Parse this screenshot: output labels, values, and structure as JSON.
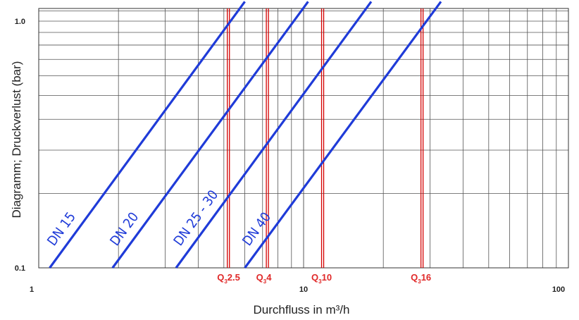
{
  "chart_data": {
    "type": "line",
    "xscale": "log",
    "yscale": "log",
    "xlim": [
      1,
      100
    ],
    "ylim": [
      0.1,
      1.0
    ],
    "xticks": [
      {
        "value": 1,
        "label": "1"
      },
      {
        "value": 10,
        "label": "10"
      },
      {
        "value": 100,
        "label": "100"
      }
    ],
    "yticks": [
      {
        "value": 0.1,
        "label": "0.1"
      },
      {
        "value": 1.0,
        "label": "1.0"
      }
    ],
    "xlabel": "Durchfluss in m³/h",
    "ylabel": "Diagramm; Druckverlust (bar)",
    "grid": true,
    "series": [
      {
        "name": "DN 15",
        "x": [
          1.1,
          6.0
        ],
        "y": [
          0.1,
          1.2
        ]
      },
      {
        "name": "DN 20",
        "x": [
          1.9,
          10.4
        ],
        "y": [
          0.1,
          1.2
        ]
      },
      {
        "name": "DN 25 - 30",
        "x": [
          3.3,
          18.0
        ],
        "y": [
          0.1,
          1.2
        ]
      },
      {
        "name": "DN 40",
        "x": [
          6.0,
          33.0
        ],
        "y": [
          0.1,
          1.2
        ]
      }
    ],
    "markers": [
      {
        "label": "Q3 2.5",
        "prefix": "Q",
        "sub": "3",
        "suffix": "2.5",
        "x": 5.2
      },
      {
        "label": "Q3 4",
        "prefix": "Q",
        "sub": "3",
        "suffix": "4",
        "x": 7.3
      },
      {
        "label": "Q3 10",
        "prefix": "Q",
        "sub": "3",
        "suffix": "10",
        "x": 11.8
      },
      {
        "label": "Q3 16",
        "prefix": "Q",
        "sub": "3",
        "suffix": "16",
        "x": 28.0
      }
    ],
    "colors": {
      "series": "#1f3bd8",
      "markers": "#d40000",
      "marker_text": "#e02828"
    }
  }
}
